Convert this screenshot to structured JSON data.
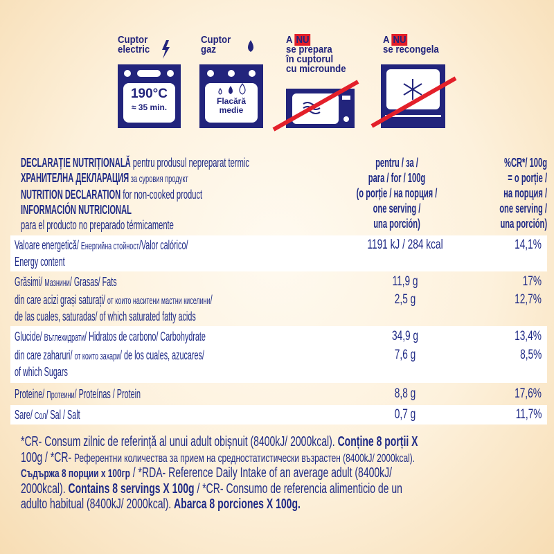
{
  "colors": {
    "navy": "#22247c",
    "text": "#1f2a86",
    "red": "#e3202a",
    "cream": "#fdf1dc"
  },
  "icons": [
    {
      "name": "electric-oven",
      "title_lines": [
        "Cuptor",
        "electric"
      ],
      "symbol": "lightning-bolt-icon",
      "display_lines": [
        "190°C",
        "≈ 35 min."
      ]
    },
    {
      "name": "gas-oven",
      "title_lines": [
        "Cuptor",
        "gaz"
      ],
      "symbol": "flame-drop-icon",
      "display_lines": [
        "Flacără",
        "medie"
      ]
    },
    {
      "name": "no-microwave",
      "prefix": "A",
      "nu": "NU",
      "title_lines": [
        "se prepara",
        "în cuptorul",
        "cu microunde"
      ]
    },
    {
      "name": "no-refreeze",
      "prefix": "A",
      "nu": "NU",
      "title_lines": [
        "se recongela"
      ]
    }
  ],
  "header": {
    "lines": [
      {
        "bold": "DECLARAȚIE NUTRIȚIONALĂ",
        "normal": " pentru produsul nepreparat termic"
      },
      {
        "bold": "ХРАНИТЕЛНА ДЕКЛАРАЦИЯ",
        "normal": " за суровия продукт"
      },
      {
        "bold": "NUTRITION DECLARATION",
        "normal": " for non-cooked product"
      },
      {
        "bold": "INFORMACIÓN NUTRICIONAL",
        "normal": ""
      },
      {
        "bold": "",
        "normal": "para el producto no preparado térmicamente"
      }
    ],
    "col2": [
      "pentru / за /",
      "para / for / 100g",
      "(o porție / на порция /",
      "one serving /",
      "una porción)"
    ],
    "col3": [
      "%CR*/ 100g",
      "= o porție /",
      "на порция /",
      "one serving /",
      "una porción)"
    ]
  },
  "rows": [
    {
      "label": [
        "Valoare energetică/ ",
        "Енергийна стойност",
        "/Valor calórico/"
      ],
      "label2": "Energy content",
      "value": "1191 kJ / 284 kcal",
      "pct": "14,1%"
    },
    {
      "label": [
        "Grăsimi/ ",
        "Мазнини",
        "/ Grasas/ Fats"
      ],
      "value": "11,9 g",
      "pct": "17%"
    },
    {
      "label": [
        "din care acizi grași saturați/ ",
        "от които наситени мастни киселини",
        "/"
      ],
      "label2": "de las cuales, saturadas/ of which saturated fatty acids",
      "value": "2,5 g",
      "pct": "12,7%"
    },
    {
      "label": [
        "Glucide/ ",
        "Въглехидрати",
        "/ Hidratos de carbono/ Carbohydrate"
      ],
      "value": "34,9 g",
      "pct": "13,4%"
    },
    {
      "label": [
        "din care zaharuri/ ",
        "от които захари",
        "/ de los cuales, azucares/"
      ],
      "label2": "of which Sugars",
      "value": "7,6 g",
      "pct": "8,5%"
    },
    {
      "label": [
        "Proteine/ ",
        "Протеини",
        "/ Proteínas / Protein"
      ],
      "value": "8,8 g",
      "pct": "17,6%"
    },
    {
      "label": [
        "Sare/ ",
        "Сол",
        "/ Sal / Salt"
      ],
      "value": "0,7 g",
      "pct": "11,7%"
    }
  ],
  "footer": [
    {
      "a": "*CR- Consum zilnic de referință al unui adult obișnuit (8400kJ/ 2000kcal). ",
      "b": "Conține 8 porții X"
    },
    {
      "a": "100g / *CR- ",
      "cy": "Референтни количества за прием на средностатистически възрастен (8400kJ/ 2000kcal)."
    },
    {
      "b": "Съдържа 8 порции x 100гр",
      "a": " / *RDA- Reference Daily Intake of an average adult (8400kJ/"
    },
    {
      "a": "2000kcal). ",
      "b": "Contains 8 servings X 100g",
      "a2": " / *CR- Consumo de referencia alimenticio de un"
    },
    {
      "a": "adulto habitual (8400kJ/ 2000kcal). ",
      "b": "Abarca 8 porciones X 100g."
    }
  ]
}
